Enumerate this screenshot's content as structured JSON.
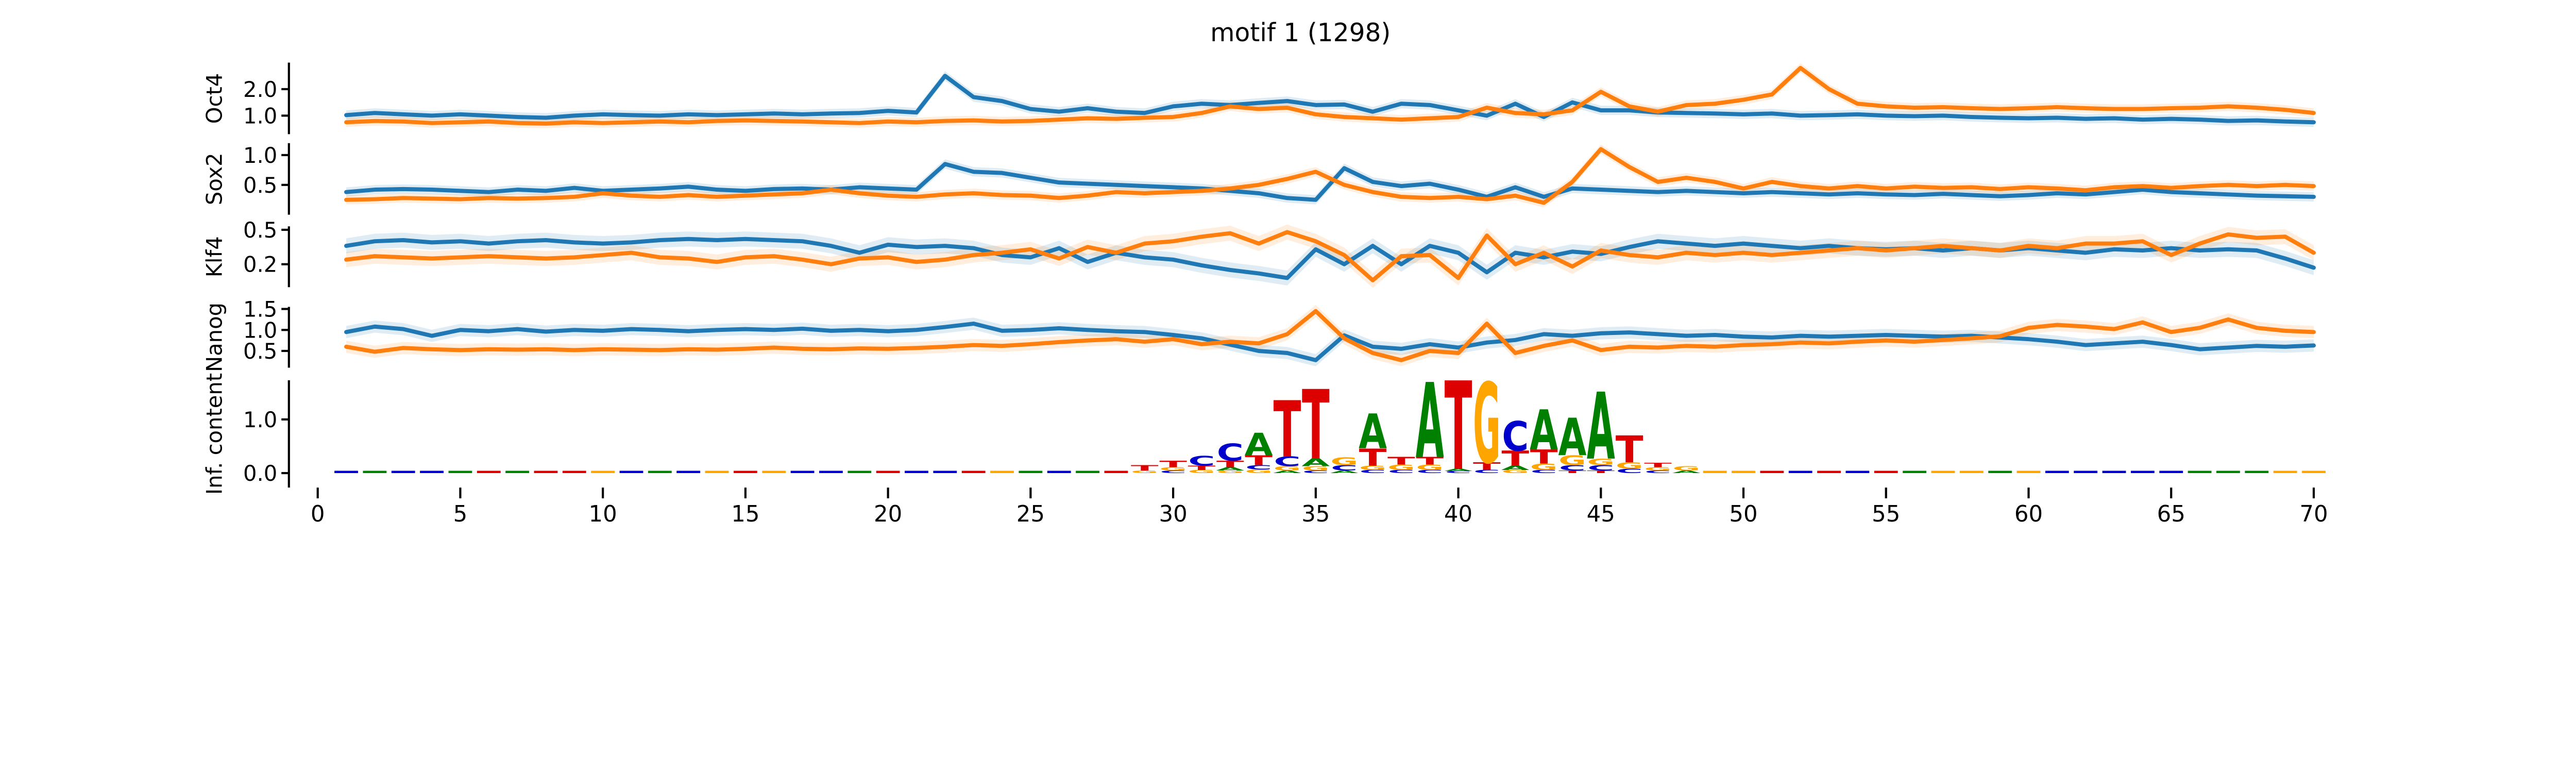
{
  "title": "motif 1 (1298)",
  "colors": {
    "pos_strand": "#1f77b4",
    "neg_strand": "#ff7f0e",
    "axis": "#000000",
    "logo_A": "#008000",
    "logo_C": "#0000cc",
    "logo_G": "#ffa500",
    "logo_T": "#dd0000"
  },
  "chart_data": {
    "type": "line",
    "note": "5 stacked panels sharing x axis 0-70: four ChIP profile line panels (blue=+strand, orange=-strand, each with light confidence band) and one sequence-logo information-content panel",
    "x_start": 1,
    "x_ticks": [
      0,
      5,
      10,
      15,
      20,
      25,
      30,
      35,
      40,
      45,
      50,
      55,
      60,
      65,
      70
    ],
    "x_range": [
      -1,
      71
    ],
    "panels": [
      {
        "name": "Oct4",
        "ylabel": "Oct4",
        "yticks": [
          2.0,
          1.0
        ],
        "ylim": [
          0.3,
          3.0
        ],
        "series": [
          {
            "name": "pos",
            "values": [
              1.02,
              1.1,
              1.05,
              1.0,
              1.05,
              1.0,
              0.95,
              0.92,
              1.0,
              1.05,
              1.02,
              1.0,
              1.05,
              1.02,
              1.05,
              1.08,
              1.05,
              1.08,
              1.1,
              1.18,
              1.12,
              2.5,
              1.7,
              1.55,
              1.25,
              1.15,
              1.28,
              1.15,
              1.1,
              1.35,
              1.45,
              1.4,
              1.48,
              1.55,
              1.4,
              1.42,
              1.15,
              1.45,
              1.4,
              1.2,
              1.0,
              1.45,
              0.95,
              1.5,
              1.2,
              1.2,
              1.12,
              1.1,
              1.08,
              1.05,
              1.08,
              1.0,
              1.02,
              1.05,
              1.0,
              0.98,
              1.0,
              0.95,
              0.92,
              0.9,
              0.92,
              0.88,
              0.9,
              0.85,
              0.88,
              0.85,
              0.8,
              0.82,
              0.78,
              0.75
            ]
          },
          {
            "name": "neg",
            "values": [
              0.75,
              0.8,
              0.78,
              0.72,
              0.75,
              0.78,
              0.72,
              0.7,
              0.75,
              0.72,
              0.75,
              0.78,
              0.75,
              0.8,
              0.82,
              0.8,
              0.78,
              0.75,
              0.72,
              0.78,
              0.75,
              0.8,
              0.82,
              0.78,
              0.8,
              0.85,
              0.9,
              0.88,
              0.92,
              0.95,
              1.1,
              1.35,
              1.25,
              1.3,
              1.05,
              0.95,
              0.9,
              0.85,
              0.9,
              0.95,
              1.3,
              1.1,
              1.05,
              1.2,
              1.9,
              1.35,
              1.15,
              1.4,
              1.45,
              1.6,
              1.8,
              2.8,
              2.0,
              1.45,
              1.35,
              1.3,
              1.32,
              1.28,
              1.25,
              1.28,
              1.32,
              1.28,
              1.25,
              1.25,
              1.28,
              1.3,
              1.35,
              1.3,
              1.22,
              1.1
            ]
          }
        ]
      },
      {
        "name": "Sox2",
        "ylabel": "Sox2",
        "yticks": [
          1.0,
          0.5
        ],
        "ylim": [
          0.0,
          1.2
        ],
        "series": [
          {
            "name": "pos",
            "values": [
              0.38,
              0.42,
              0.43,
              0.42,
              0.4,
              0.38,
              0.42,
              0.4,
              0.45,
              0.4,
              0.42,
              0.44,
              0.47,
              0.42,
              0.4,
              0.43,
              0.44,
              0.42,
              0.46,
              0.44,
              0.42,
              0.85,
              0.72,
              0.7,
              0.62,
              0.54,
              0.52,
              0.5,
              0.48,
              0.46,
              0.44,
              0.4,
              0.36,
              0.28,
              0.25,
              0.78,
              0.55,
              0.48,
              0.52,
              0.42,
              0.3,
              0.46,
              0.3,
              0.44,
              0.42,
              0.4,
              0.38,
              0.4,
              0.38,
              0.36,
              0.38,
              0.36,
              0.34,
              0.36,
              0.34,
              0.33,
              0.35,
              0.33,
              0.31,
              0.33,
              0.36,
              0.34,
              0.38,
              0.42,
              0.38,
              0.36,
              0.34,
              0.32,
              0.31,
              0.3
            ]
          },
          {
            "name": "neg",
            "values": [
              0.25,
              0.26,
              0.28,
              0.27,
              0.26,
              0.28,
              0.27,
              0.28,
              0.3,
              0.36,
              0.32,
              0.3,
              0.33,
              0.3,
              0.32,
              0.34,
              0.36,
              0.42,
              0.36,
              0.32,
              0.3,
              0.34,
              0.36,
              0.33,
              0.32,
              0.28,
              0.32,
              0.38,
              0.36,
              0.38,
              0.4,
              0.44,
              0.5,
              0.6,
              0.72,
              0.5,
              0.38,
              0.3,
              0.28,
              0.3,
              0.26,
              0.32,
              0.2,
              0.55,
              1.1,
              0.8,
              0.55,
              0.62,
              0.55,
              0.44,
              0.55,
              0.48,
              0.44,
              0.48,
              0.44,
              0.47,
              0.45,
              0.46,
              0.43,
              0.46,
              0.44,
              0.41,
              0.46,
              0.48,
              0.45,
              0.48,
              0.5,
              0.48,
              0.5,
              0.48
            ]
          }
        ]
      },
      {
        "name": "Klf4",
        "ylabel": "Klf4",
        "yticks": [
          0.5,
          0.2
        ],
        "ylim": [
          0.0,
          0.53
        ],
        "series": [
          {
            "name": "pos",
            "values": [
              0.36,
              0.4,
              0.41,
              0.39,
              0.4,
              0.38,
              0.4,
              0.41,
              0.39,
              0.38,
              0.39,
              0.41,
              0.42,
              0.41,
              0.42,
              0.41,
              0.4,
              0.36,
              0.3,
              0.37,
              0.35,
              0.36,
              0.34,
              0.28,
              0.26,
              0.34,
              0.22,
              0.3,
              0.26,
              0.24,
              0.19,
              0.15,
              0.12,
              0.08,
              0.33,
              0.2,
              0.36,
              0.2,
              0.36,
              0.3,
              0.13,
              0.3,
              0.26,
              0.31,
              0.29,
              0.35,
              0.4,
              0.38,
              0.36,
              0.38,
              0.36,
              0.34,
              0.36,
              0.34,
              0.33,
              0.34,
              0.32,
              0.34,
              0.32,
              0.34,
              0.32,
              0.3,
              0.33,
              0.32,
              0.34,
              0.32,
              0.33,
              0.32,
              0.25,
              0.17
            ]
          },
          {
            "name": "neg",
            "values": [
              0.24,
              0.27,
              0.26,
              0.25,
              0.26,
              0.27,
              0.26,
              0.25,
              0.26,
              0.28,
              0.3,
              0.26,
              0.25,
              0.22,
              0.26,
              0.27,
              0.24,
              0.2,
              0.25,
              0.26,
              0.22,
              0.24,
              0.28,
              0.3,
              0.33,
              0.25,
              0.35,
              0.3,
              0.38,
              0.4,
              0.44,
              0.47,
              0.38,
              0.48,
              0.4,
              0.28,
              0.06,
              0.27,
              0.28,
              0.08,
              0.45,
              0.2,
              0.3,
              0.18,
              0.32,
              0.28,
              0.26,
              0.3,
              0.28,
              0.3,
              0.28,
              0.3,
              0.32,
              0.34,
              0.32,
              0.34,
              0.36,
              0.34,
              0.32,
              0.36,
              0.34,
              0.38,
              0.38,
              0.4,
              0.28,
              0.38,
              0.46,
              0.43,
              0.44,
              0.3
            ]
          }
        ]
      },
      {
        "name": "Nanog",
        "ylabel": "Nanog",
        "yticks": [
          1.5,
          1.0,
          0.5
        ],
        "ylim": [
          0.1,
          1.55
        ],
        "series": [
          {
            "name": "pos",
            "values": [
              0.95,
              1.08,
              1.02,
              0.86,
              1.0,
              0.97,
              1.02,
              0.96,
              1.0,
              0.98,
              1.02,
              1.0,
              0.97,
              1.0,
              1.02,
              1.0,
              1.03,
              0.98,
              1.0,
              0.97,
              1.0,
              1.07,
              1.15,
              0.98,
              1.0,
              1.04,
              1.0,
              0.97,
              0.95,
              0.88,
              0.8,
              0.65,
              0.5,
              0.45,
              0.28,
              0.87,
              0.6,
              0.55,
              0.66,
              0.58,
              0.7,
              0.76,
              0.9,
              0.86,
              0.92,
              0.94,
              0.9,
              0.86,
              0.88,
              0.84,
              0.82,
              0.86,
              0.84,
              0.86,
              0.88,
              0.86,
              0.84,
              0.86,
              0.82,
              0.78,
              0.72,
              0.64,
              0.68,
              0.72,
              0.64,
              0.54,
              0.58,
              0.62,
              0.6,
              0.63
            ]
          },
          {
            "name": "neg",
            "values": [
              0.6,
              0.48,
              0.57,
              0.54,
              0.52,
              0.54,
              0.53,
              0.54,
              0.52,
              0.54,
              0.53,
              0.52,
              0.54,
              0.53,
              0.55,
              0.58,
              0.55,
              0.54,
              0.56,
              0.55,
              0.57,
              0.6,
              0.64,
              0.62,
              0.66,
              0.71,
              0.75,
              0.78,
              0.72,
              0.78,
              0.66,
              0.72,
              0.68,
              0.9,
              1.45,
              0.8,
              0.45,
              0.28,
              0.5,
              0.45,
              1.15,
              0.45,
              0.62,
              0.75,
              0.52,
              0.6,
              0.58,
              0.62,
              0.6,
              0.64,
              0.66,
              0.7,
              0.68,
              0.72,
              0.75,
              0.72,
              0.76,
              0.8,
              0.85,
              1.05,
              1.12,
              1.08,
              1.02,
              1.18,
              0.95,
              1.05,
              1.25,
              1.05,
              0.98,
              0.95
            ]
          }
        ]
      },
      {
        "name": "Inf. content",
        "ylabel": "Inf. content",
        "yticks": [
          1.0,
          0.0
        ],
        "ylim": [
          -0.27,
          1.73
        ],
        "type": "logo",
        "logo_stacks": {
          "29": [
            [
              "G",
              0.05
            ],
            [
              "T",
              0.1
            ]
          ],
          "30": [
            [
              "C",
              0.05
            ],
            [
              "G",
              0.06
            ],
            [
              "T",
              0.12
            ]
          ],
          "31": [
            [
              "G",
              0.06
            ],
            [
              "T",
              0.08
            ],
            [
              "C",
              0.18
            ]
          ],
          "32": [
            [
              "G",
              0.05
            ],
            [
              "A",
              0.06
            ],
            [
              "T",
              0.12
            ],
            [
              "C",
              0.32
            ]
          ],
          "33": [
            [
              "G",
              0.07
            ],
            [
              "C",
              0.08
            ],
            [
              "T",
              0.18
            ],
            [
              "A",
              0.42
            ]
          ],
          "34": [
            [
              "A",
              0.05
            ],
            [
              "G",
              0.08
            ],
            [
              "C",
              0.18
            ],
            [
              "T",
              1.05
            ]
          ],
          "35": [
            [
              "C",
              0.05
            ],
            [
              "G",
              0.08
            ],
            [
              "A",
              0.14
            ],
            [
              "T",
              1.3
            ]
          ],
          "36": [
            [
              "A",
              0.05
            ],
            [
              "C",
              0.1
            ],
            [
              "G",
              0.14
            ]
          ],
          "37": [
            [
              "C",
              0.06
            ],
            [
              "G",
              0.08
            ],
            [
              "T",
              0.32
            ],
            [
              "A",
              0.65
            ]
          ],
          "38": [
            [
              "C",
              0.06
            ],
            [
              "G",
              0.1
            ],
            [
              "T",
              0.14
            ]
          ],
          "39": [
            [
              "C",
              0.06
            ],
            [
              "G",
              0.1
            ],
            [
              "T",
              0.14
            ],
            [
              "A",
              1.4
            ]
          ],
          "40": [
            [
              "C",
              0.04
            ],
            [
              "A",
              0.04
            ],
            [
              "T",
              1.65
            ]
          ],
          "41": [
            [
              "C",
              0.06
            ],
            [
              "T",
              0.14
            ],
            [
              "G",
              1.5
            ]
          ],
          "42": [
            [
              "G",
              0.06
            ],
            [
              "A",
              0.08
            ],
            [
              "T",
              0.28
            ],
            [
              "C",
              0.55
            ]
          ],
          "43": [
            [
              "C",
              0.06
            ],
            [
              "G",
              0.12
            ],
            [
              "T",
              0.26
            ],
            [
              "A",
              0.75
            ]
          ],
          "44": [
            [
              "T",
              0.05
            ],
            [
              "C",
              0.1
            ],
            [
              "G",
              0.18
            ],
            [
              "A",
              0.7
            ]
          ],
          "45": [
            [
              "T",
              0.05
            ],
            [
              "C",
              0.1
            ],
            [
              "G",
              0.12
            ],
            [
              "A",
              1.25
            ]
          ],
          "46": [
            [
              "C",
              0.08
            ],
            [
              "G",
              0.12
            ],
            [
              "T",
              0.5
            ]
          ],
          "47": [
            [
              "C",
              0.05
            ],
            [
              "G",
              0.06
            ],
            [
              "T",
              0.08
            ]
          ],
          "48": [
            [
              "A",
              0.05
            ],
            [
              "G",
              0.08
            ]
          ]
        },
        "logo_dashes": {
          "1": "C",
          "2": "A",
          "3": "C",
          "4": "C",
          "5": "A",
          "6": "T",
          "7": "A",
          "8": "T",
          "9": "T",
          "10": "G",
          "11": "C",
          "12": "A",
          "13": "C",
          "14": "G",
          "15": "T",
          "16": "G",
          "17": "C",
          "18": "C",
          "19": "A",
          "20": "T",
          "21": "C",
          "22": "C",
          "23": "T",
          "24": "G",
          "25": "A",
          "26": "C",
          "27": "A",
          "28": "T",
          "49": "G",
          "50": "G",
          "51": "T",
          "52": "C",
          "53": "T",
          "54": "C",
          "55": "T",
          "56": "A",
          "57": "G",
          "58": "G",
          "59": "A",
          "60": "G",
          "61": "C",
          "62": "C",
          "63": "C",
          "64": "C",
          "65": "C",
          "66": "A",
          "67": "A",
          "68": "A",
          "69": "G",
          "70": "G"
        }
      }
    ]
  }
}
